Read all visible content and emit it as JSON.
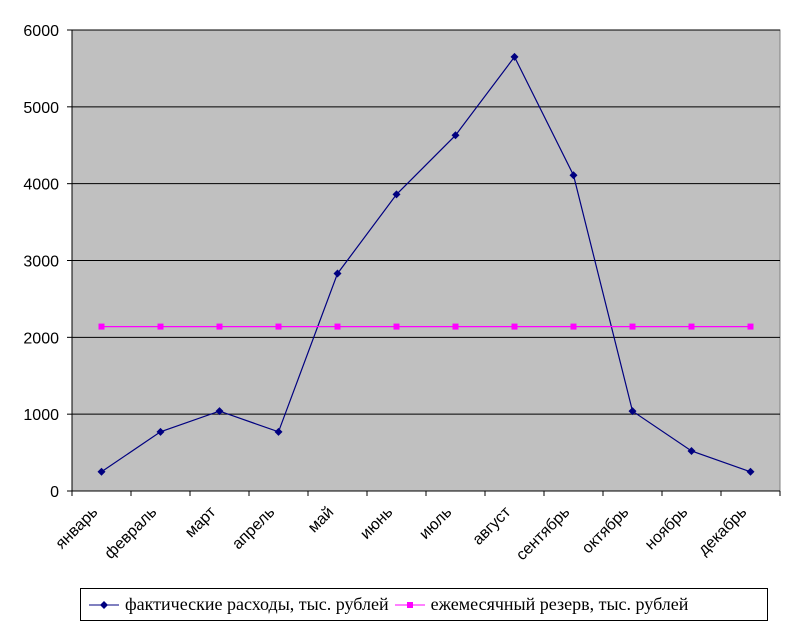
{
  "chart_data": {
    "type": "line",
    "categories": [
      "январь",
      "февраль",
      "март",
      "апрель",
      "май",
      "июнь",
      "июль",
      "август",
      "сентябрь",
      "октябрь",
      "ноябрь",
      "декабрь"
    ],
    "series": [
      {
        "name": "фактические расходы, тыс. рублей",
        "color": "#000080",
        "marker": "diamond",
        "values": [
          250,
          770,
          1040,
          770,
          2830,
          3860,
          4630,
          5650,
          4110,
          1040,
          520,
          250
        ]
      },
      {
        "name": "ежемесячный резерв, тыс. рублей",
        "color": "#ff00ff",
        "marker": "square",
        "values": [
          2140,
          2140,
          2140,
          2140,
          2140,
          2140,
          2140,
          2140,
          2140,
          2140,
          2140,
          2140
        ]
      }
    ],
    "yticks": [
      0,
      1000,
      2000,
      3000,
      4000,
      5000,
      6000
    ],
    "ylim": [
      0,
      6000
    ],
    "grid": true,
    "plot_background": "#c0c0c0",
    "legend_position": "bottom",
    "title": "",
    "xlabel": "",
    "ylabel": ""
  }
}
